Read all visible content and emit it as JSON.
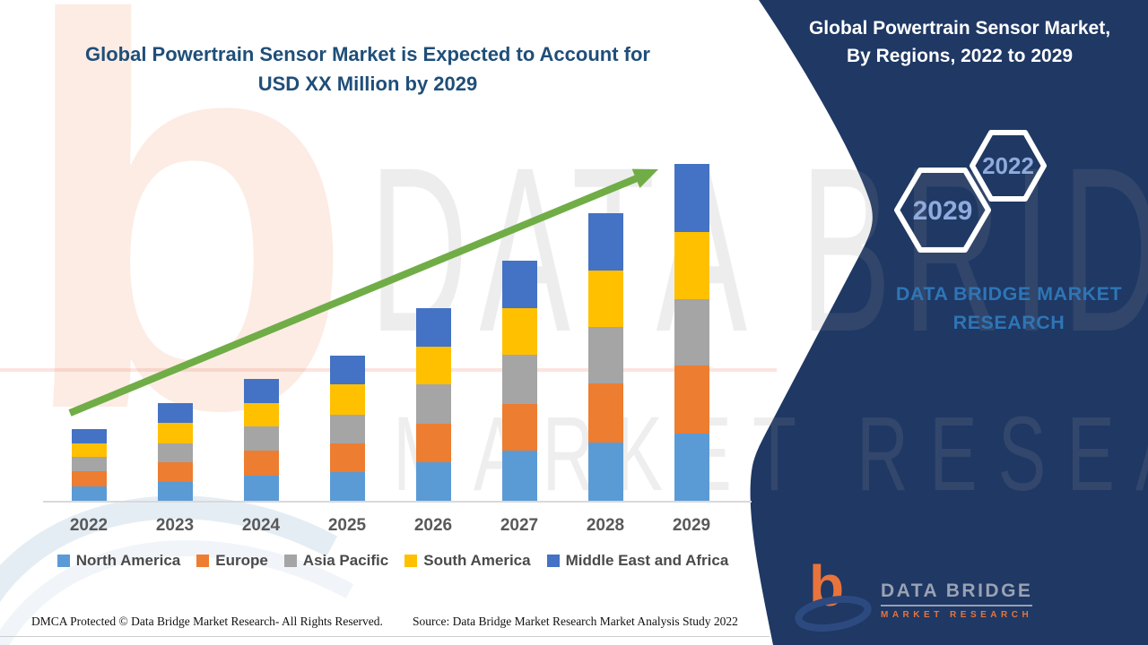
{
  "title": {
    "line1": "Global Powertrain Sensor Market is Expected to Account for",
    "line2": "USD XX Million by 2029"
  },
  "side_panel": {
    "heading_line1": "Global Powertrain Sensor Market,",
    "heading_line2": "By Regions, 2022 to 2029",
    "hexagons": [
      {
        "label": "2029"
      },
      {
        "label": "2022"
      }
    ],
    "brand_line1": "DATA BRIDGE MARKET",
    "brand_line2": "RESEARCH",
    "bg_color": "#1F3864",
    "hexagon_text_color": "#8FAADC",
    "brand_text_color": "#2E75B6"
  },
  "logo": {
    "glyph": "b",
    "name": "DATA BRIDGE",
    "subname": "MARKET RESEARCH",
    "b_color": "#E8743C",
    "ring_color": "#2D4A80"
  },
  "watermark": {
    "line1": "DATA BRIDGE",
    "line2": "MARKET RESEARCH"
  },
  "footer": {
    "dmca": "DMCA Protected © Data Bridge Market Research- All Rights Reserved.",
    "source": "Source: Data Bridge Market Research Market Analysis Study 2022"
  },
  "chart_data": {
    "type": "bar",
    "stacked": true,
    "title": "Global Powertrain Sensor Market is Expected to Account for USD XX Million by 2029",
    "xlabel": "",
    "ylabel": "",
    "units": "USD Million (values masked as XX in source image)",
    "y_axis_visible": false,
    "grid": false,
    "legend_position": "bottom",
    "categories": [
      "2022",
      "2023",
      "2024",
      "2025",
      "2026",
      "2027",
      "2028",
      "2029"
    ],
    "series": [
      {
        "name": "North America",
        "color": "#5B9BD5",
        "values": [
          16,
          21,
          28,
          32,
          43,
          56,
          65,
          75
        ]
      },
      {
        "name": "Europe",
        "color": "#ED7D31",
        "values": [
          17,
          22,
          28,
          32,
          43,
          52,
          66,
          76
        ]
      },
      {
        "name": "Asia Pacific",
        "color": "#A5A5A5",
        "values": [
          16,
          21,
          27,
          32,
          44,
          55,
          63,
          74
        ]
      },
      {
        "name": "South America",
        "color": "#FFC000",
        "values": [
          15,
          23,
          26,
          34,
          42,
          52,
          63,
          75
        ]
      },
      {
        "name": "Middle East and Africa",
        "color": "#4472C4",
        "values": [
          16,
          22,
          27,
          32,
          43,
          53,
          64,
          76
        ]
      }
    ],
    "totals_relative": [
      80,
      109,
      136,
      162,
      215,
      268,
      321,
      376
    ],
    "trend_arrow": {
      "color": "#70AD47",
      "from_category": "2022",
      "to_category": "2029",
      "direction": "up"
    }
  }
}
